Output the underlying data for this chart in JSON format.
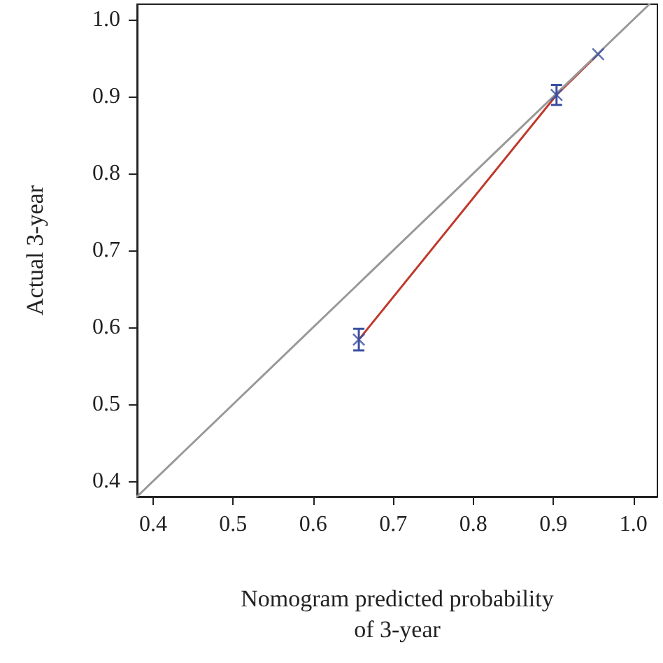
{
  "chart_data": {
    "type": "scatter",
    "xlabel": "Nomogram predicted probability\nof 3-year",
    "ylabel": "Actual 3-year",
    "xlim": [
      0.38,
      1.03
    ],
    "ylim": [
      0.38,
      1.02
    ],
    "xticks": [
      0.4,
      0.5,
      0.6,
      0.7,
      0.8,
      0.9,
      {
        "value": 1,
        "label": "1.0"
      }
    ],
    "yticks": [
      0.4,
      0.5,
      0.6,
      0.7,
      0.8,
      0.9,
      {
        "value": 1,
        "label": "1.0"
      }
    ],
    "grid": false,
    "series": [
      {
        "type": "line",
        "color": "#c0392b",
        "x": [
          0.657,
          0.904,
          0.956
        ],
        "values": [
          0.584,
          0.902,
          0.955
        ],
        "marker": "none",
        "line_style": "solid"
      },
      {
        "color": "#3a4fa0",
        "x": [
          0.657,
          0.904,
          0.956
        ],
        "values": [
          0.584,
          0.902,
          0.955
        ],
        "errors": [
          0.014,
          0.013,
          null
        ],
        "marker": "cross"
      },
      {
        "type": "line",
        "color": "#999999",
        "x": [
          0.38,
          1.02
        ],
        "values": [
          0.38,
          1.02
        ],
        "marker": "none",
        "line_style": "solid"
      }
    ]
  }
}
